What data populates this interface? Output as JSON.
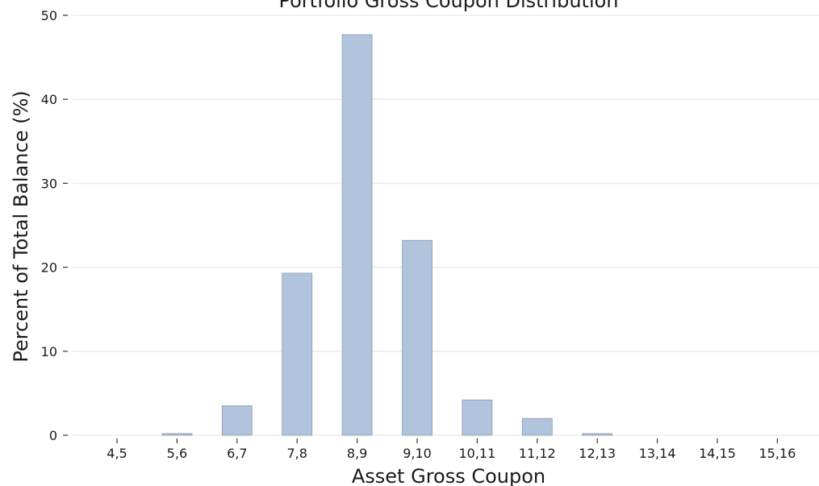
{
  "chart_data": {
    "type": "bar",
    "title": "Portfolio Gross Coupon Distribution",
    "xlabel": "Asset Gross Coupon",
    "ylabel": "Percent of Total Balance (%)",
    "categories": [
      "4,5",
      "5,6",
      "6,7",
      "7,8",
      "8,9",
      "9,10",
      "10,11",
      "11,12",
      "12,13",
      "13,14",
      "14,15",
      "15,16"
    ],
    "values": [
      0,
      0.2,
      3.5,
      19.3,
      47.7,
      23.2,
      4.2,
      2.0,
      0.2,
      0,
      0,
      0
    ],
    "ylim": [
      0,
      50
    ],
    "yticks": [
      0,
      10,
      20,
      30,
      40,
      50
    ],
    "grid": true,
    "bar_color": "#b0c4de",
    "bar_edge_color": "#8e9aaa"
  }
}
